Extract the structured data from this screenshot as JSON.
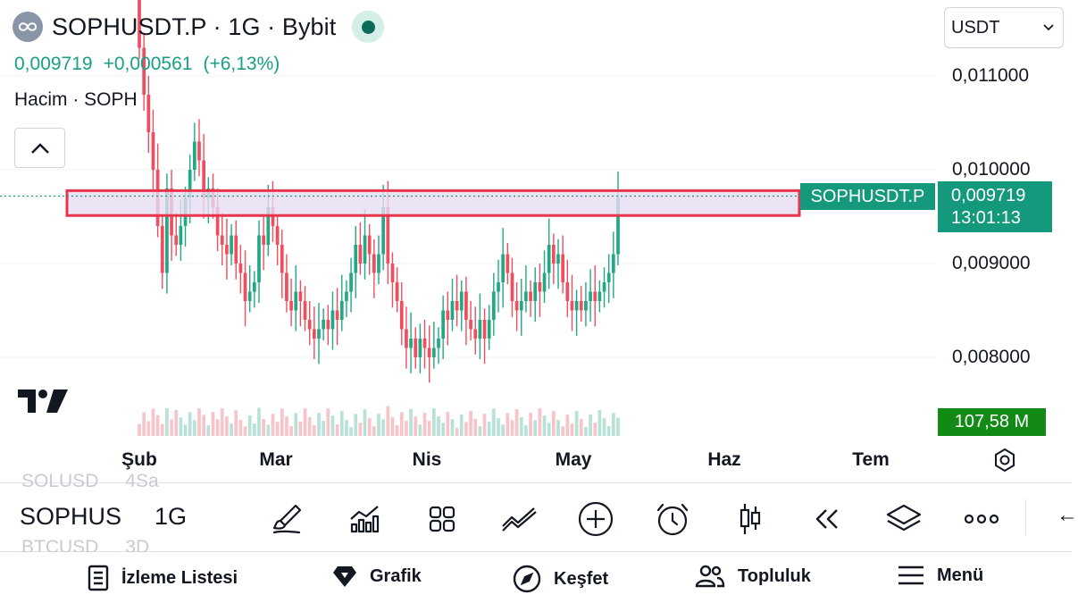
{
  "header": {
    "title": "SOPHUSDT.P · 1G · Bybit",
    "last_price": "0,009719",
    "change": "+0,000561",
    "change_pct": "(+6,13%)",
    "volume_label": "Hacim · SOPH",
    "status_color": "#0b6b58"
  },
  "currency_selector": {
    "value": "USDT"
  },
  "price_axis": {
    "ticks": [
      "0,011000",
      "0,010000",
      "0,009000",
      "0,008000"
    ],
    "symbol_label": "SOPHUSDT.P",
    "current_price": "0,009719",
    "countdown": "13:01:13",
    "volume_value": "107,58 M"
  },
  "time_axis": {
    "ticks": [
      "Şub",
      "Mar",
      "Nis",
      "May",
      "Haz",
      "Tem"
    ]
  },
  "toolbar": {
    "symbol": "SOPHUS",
    "interval": "1G",
    "ghost_top": [
      "SOLUSD",
      "4Sa"
    ],
    "ghost_bottom": [
      "BTCUSD",
      "3D"
    ],
    "icons": [
      "brush-icon",
      "indicators-icon",
      "layouts-icon",
      "trend-line-icon",
      "add-icon",
      "alert-clock-icon",
      "candles-icon",
      "replay-icon",
      "layers-icon",
      "more-icon"
    ]
  },
  "bottom_nav": {
    "watchlist": "İzleme Listesi",
    "chart": "Grafik",
    "explore": "Keşfet",
    "community": "Topluluk",
    "menu": "Menü"
  },
  "colors": {
    "up": "#22a884",
    "down": "#ef4e5e",
    "accent": "#14997c",
    "volume_up": "#b8e2d7",
    "volume_down": "#f7c4c9",
    "zone_fill": "#e7dcf3",
    "zone_border": "#e8344b"
  },
  "chart_data": {
    "type": "candlestick",
    "interval": "1G",
    "y_range": [
      0.0076,
      0.0116
    ],
    "y_ticks": [
      0.011,
      0.01,
      0.009,
      0.008
    ],
    "x_ticks": [
      "Şub",
      "Mar",
      "Nis",
      "May",
      "Haz",
      "Tem"
    ],
    "resistance_zone": [
      0.00955,
      0.00972
    ],
    "last_price": 0.009719,
    "closes": [
      0.0113,
      0.0108,
      0.0104,
      0.01,
      0.0094,
      0.0089,
      0.0098,
      0.0093,
      0.0092,
      0.0094,
      0.0097,
      0.01,
      0.0103,
      0.0101,
      0.0097,
      0.0098,
      0.0096,
      0.0093,
      0.0092,
      0.0091,
      0.0093,
      0.009,
      0.0089,
      0.0086,
      0.0087,
      0.0088,
      0.0093,
      0.0092,
      0.0096,
      0.0094,
      0.0092,
      0.0089,
      0.0086,
      0.0085,
      0.0087,
      0.0086,
      0.0084,
      0.0083,
      0.0082,
      0.0083,
      0.0084,
      0.0083,
      0.0085,
      0.0084,
      0.0086,
      0.0087,
      0.0089,
      0.0092,
      0.009,
      0.0093,
      0.0091,
      0.0089,
      0.0091,
      0.0096,
      0.009,
      0.0088,
      0.0086,
      0.0083,
      0.0081,
      0.0082,
      0.008,
      0.0082,
      0.0081,
      0.008,
      0.0081,
      0.0082,
      0.0085,
      0.0084,
      0.0086,
      0.0085,
      0.0087,
      0.0084,
      0.0083,
      0.0082,
      0.0084,
      0.0082,
      0.0084,
      0.0087,
      0.0088,
      0.0091,
      0.0089,
      0.0086,
      0.0085,
      0.0086,
      0.0087,
      0.0086,
      0.0088,
      0.0087,
      0.0089,
      0.0092,
      0.009,
      0.0091,
      0.0088,
      0.0086,
      0.0085,
      0.0086,
      0.0085,
      0.0086,
      0.0087,
      0.0086,
      0.0087,
      0.0088,
      0.0089,
      0.0091,
      0.0097
    ]
  }
}
